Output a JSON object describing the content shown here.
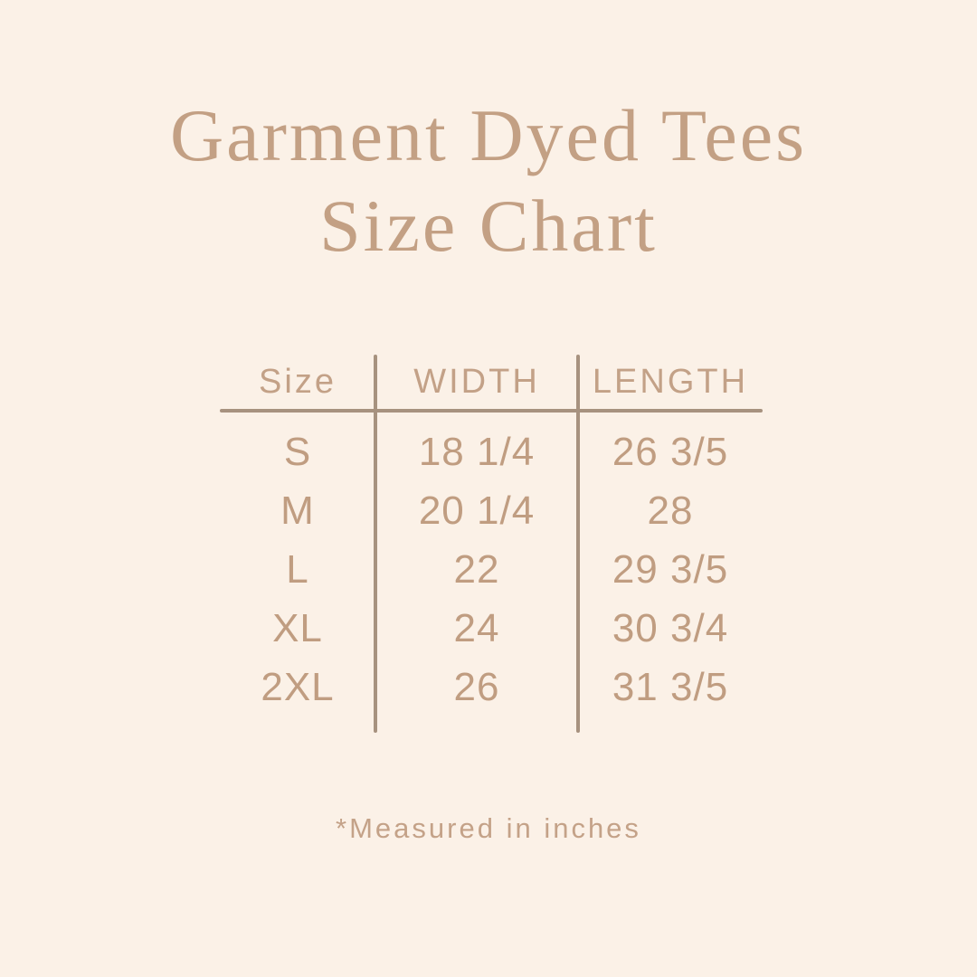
{
  "title": {
    "line1": "Garment Dyed Tees",
    "line2": "Size Chart"
  },
  "chart_data": {
    "type": "table",
    "title": "Garment Dyed Tees Size Chart",
    "columns": [
      "Size",
      "WIDTH",
      "LENGTH"
    ],
    "rows": [
      [
        "S",
        "18 1/4",
        "26 3/5"
      ],
      [
        "M",
        "20 1/4",
        "28"
      ],
      [
        "L",
        "22",
        "29 3/5"
      ],
      [
        "XL",
        "24",
        "30 3/4"
      ],
      [
        "2XL",
        "26",
        "31 3/5"
      ]
    ],
    "units": "inches",
    "footnote": "*Measured in inches"
  },
  "colors": {
    "background": "#fbf1e7",
    "title_text": "#c3a084",
    "table_text": "#c09d81",
    "grid_line": "#a7927f"
  }
}
